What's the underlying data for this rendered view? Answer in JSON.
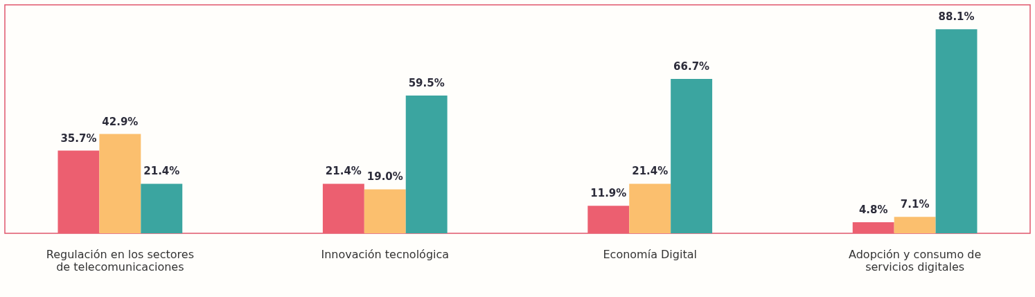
{
  "chart_data": {
    "type": "bar",
    "categories": [
      "Regulación en los sectores de telecomunicaciones",
      "Innovación tecnológica",
      "Economía Digital",
      "Adopción y consumo de servicios digitales"
    ],
    "series": [
      {
        "color": "#ec5f70",
        "values": [
          35.7,
          21.4,
          11.9,
          4.8
        ],
        "value_labels": [
          "35.7%",
          "21.4%",
          "11.9%",
          "4.8%"
        ]
      },
      {
        "color": "#fbbf6e",
        "values": [
          42.9,
          19.0,
          21.4,
          7.1
        ],
        "value_labels": [
          "42.9%",
          "19.0%",
          "21.4%",
          "7.1%"
        ]
      },
      {
        "color": "#3ba5a0",
        "values": [
          21.4,
          59.5,
          66.7,
          88.1
        ],
        "value_labels": [
          "21.4%",
          "59.5%",
          "66.7%",
          "88.1%"
        ]
      }
    ],
    "legend": false,
    "grid": false
  }
}
